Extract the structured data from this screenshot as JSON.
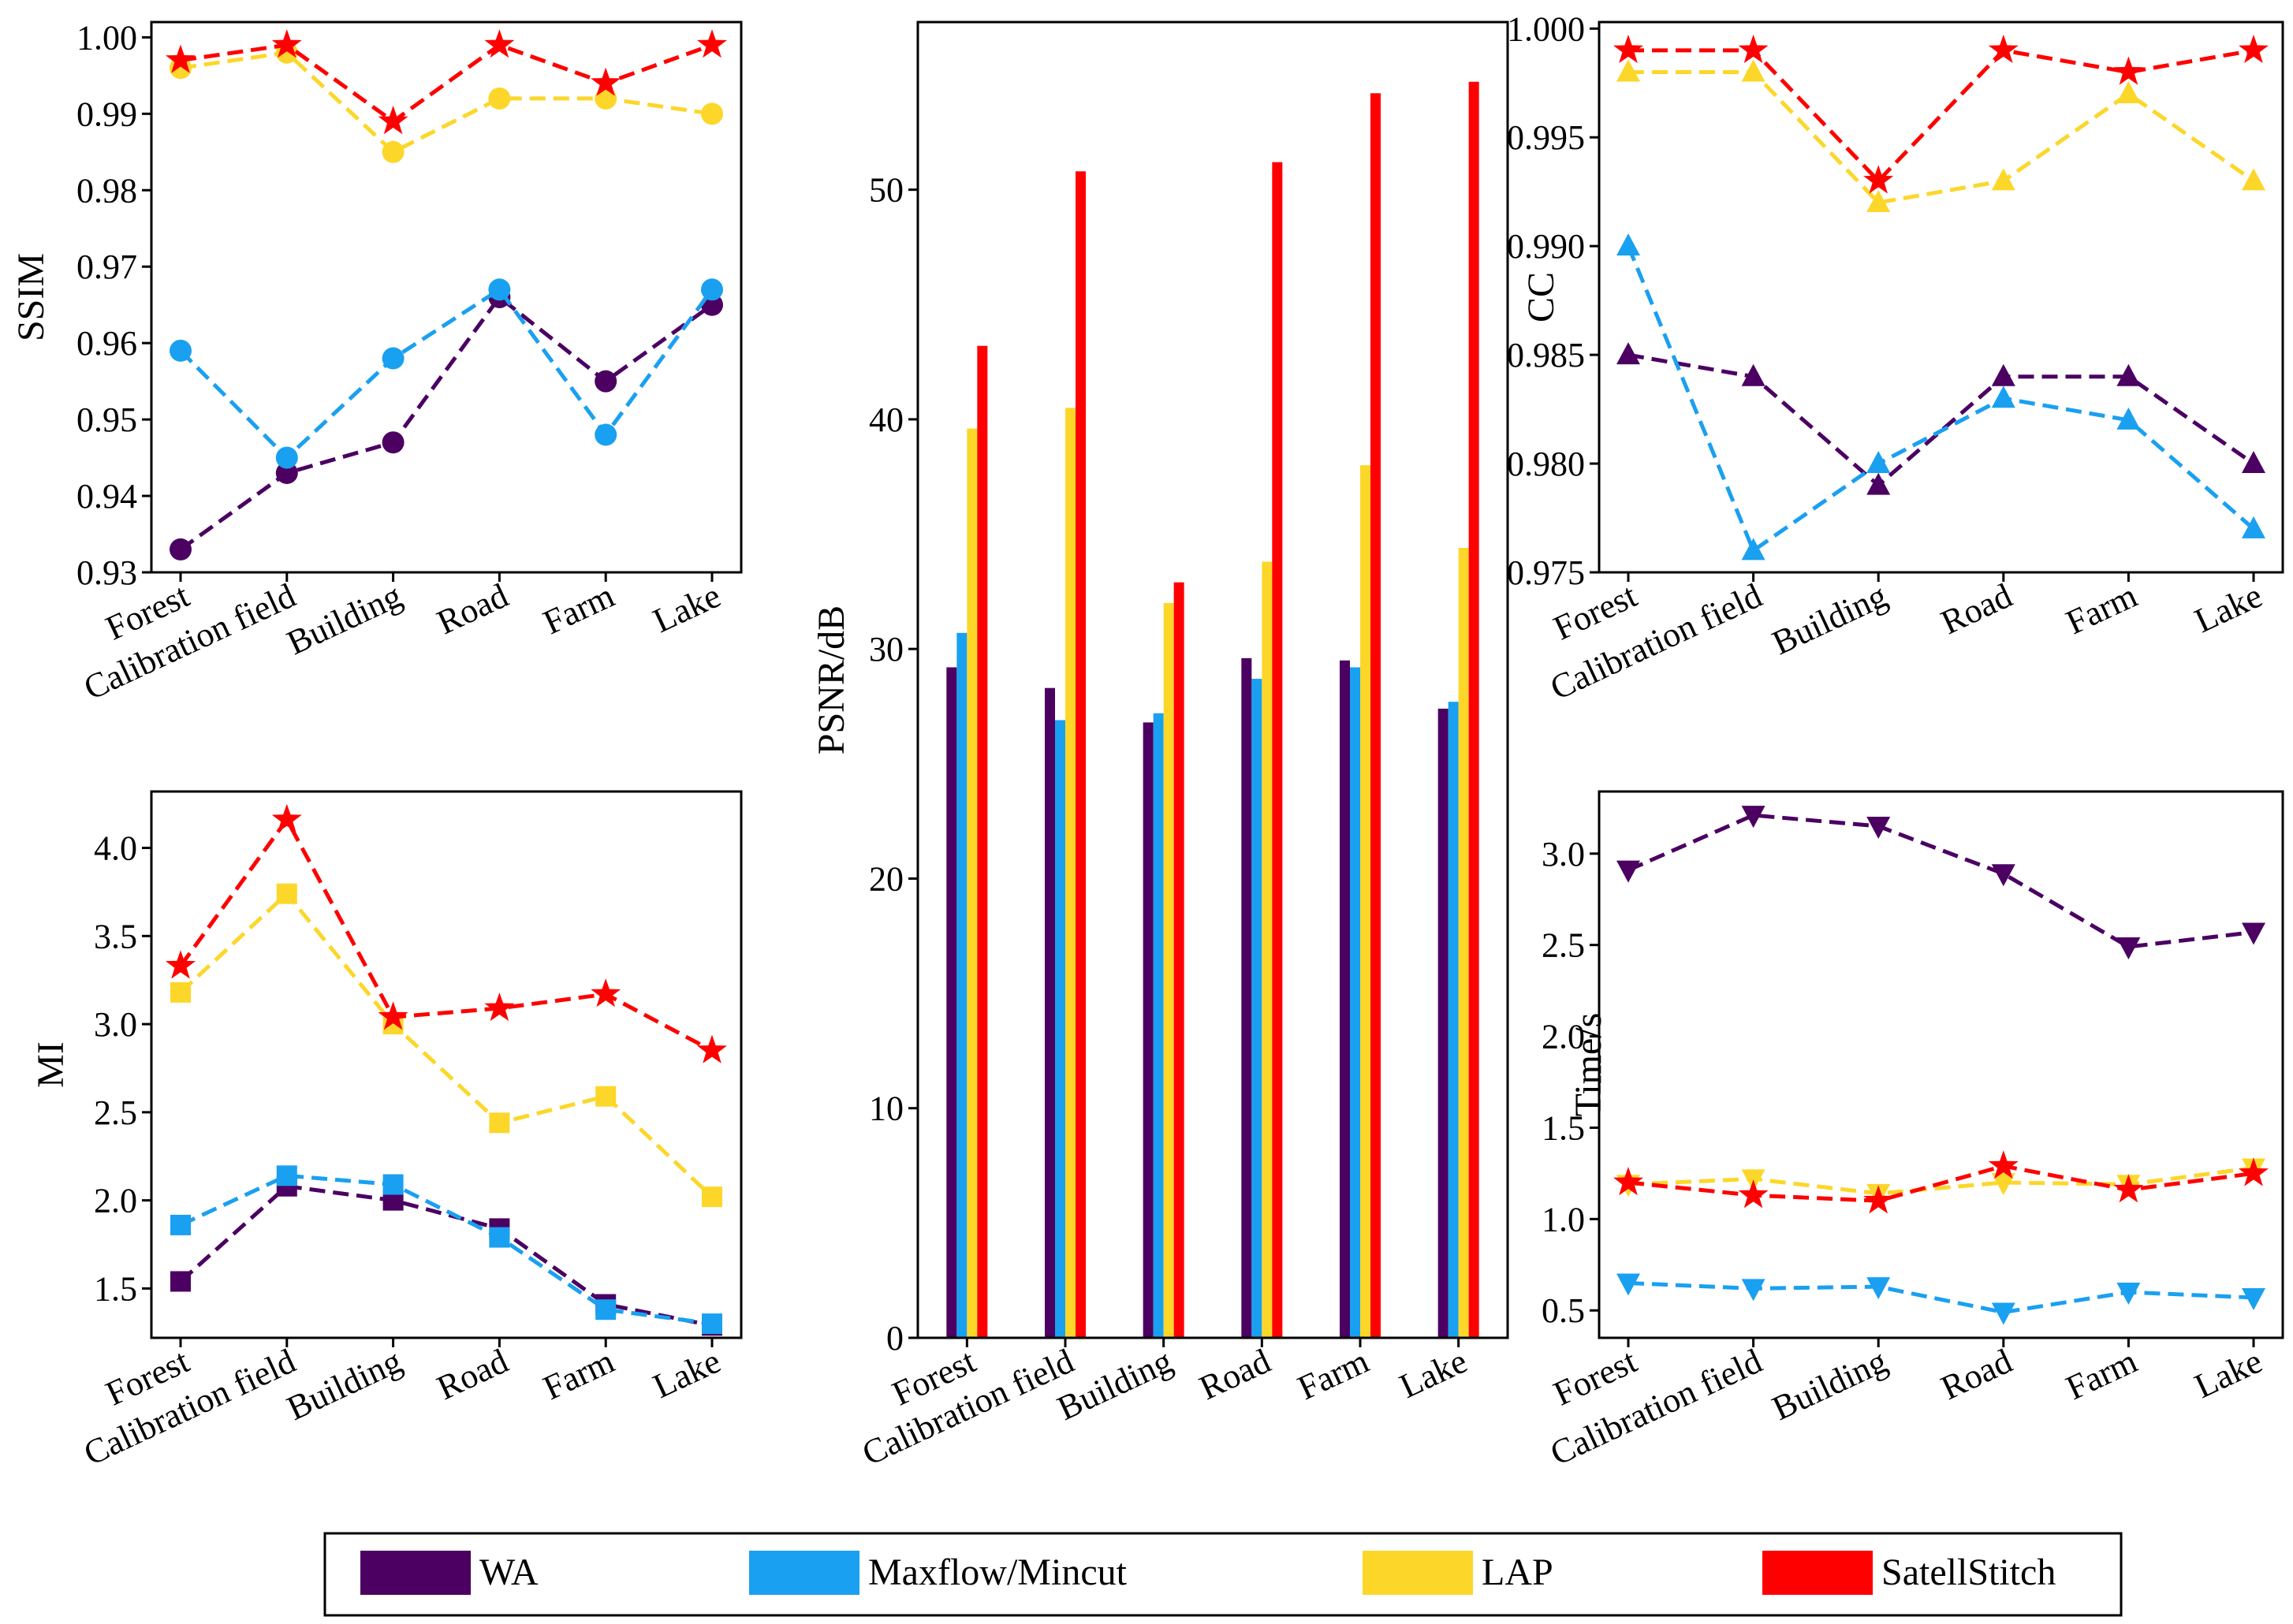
{
  "legend": [
    {
      "name": "WA",
      "color": "#4B0062"
    },
    {
      "name": "Maxflow/Mincut",
      "color": "#1AA0F0"
    },
    {
      "name": "LAP",
      "color": "#FCD72A"
    },
    {
      "name": "SatellStitch",
      "color": "#FF0000"
    }
  ],
  "chart_data": [
    {
      "id": "ssim",
      "type": "line",
      "ylabel": "SSIM",
      "categories": [
        "Forest",
        "Calibration field",
        "Building",
        "Road",
        "Farm",
        "Lake"
      ],
      "ylim": [
        0.93,
        1.002
      ],
      "yticks": [
        0.93,
        0.94,
        0.95,
        0.96,
        0.97,
        0.98,
        0.99,
        1.0
      ],
      "ytick_labels": [
        "0.93",
        "0.94",
        "0.95",
        "0.96",
        "0.97",
        "0.98",
        "0.99",
        "1.00"
      ],
      "marker": "circle",
      "series": [
        {
          "name": "WA",
          "values": [
            0.933,
            0.943,
            0.947,
            0.966,
            0.955,
            0.965
          ]
        },
        {
          "name": "Maxflow/Mincut",
          "values": [
            0.959,
            0.945,
            0.958,
            0.967,
            0.948,
            0.967
          ]
        },
        {
          "name": "LAP",
          "values": [
            0.996,
            0.998,
            0.985,
            0.992,
            0.992,
            0.99
          ]
        },
        {
          "name": "SatellStitch",
          "values": [
            0.997,
            0.999,
            0.989,
            0.999,
            0.994,
            0.999
          ]
        }
      ]
    },
    {
      "id": "mi",
      "type": "line",
      "ylabel": "MI",
      "categories": [
        "Forest",
        "Calibration field",
        "Building",
        "Road",
        "Farm",
        "Lake"
      ],
      "ylim": [
        1.22,
        4.32
      ],
      "yticks": [
        1.5,
        2.0,
        2.5,
        3.0,
        3.5,
        4.0
      ],
      "ytick_labels": [
        "1.5",
        "2.0",
        "2.5",
        "3.0",
        "3.5",
        "4.0"
      ],
      "marker": "square",
      "series": [
        {
          "name": "WA",
          "values": [
            1.54,
            2.08,
            2.0,
            1.84,
            1.41,
            1.29
          ]
        },
        {
          "name": "Maxflow/Mincut",
          "values": [
            1.86,
            2.14,
            2.09,
            1.79,
            1.38,
            1.3
          ]
        },
        {
          "name": "LAP",
          "values": [
            3.18,
            3.74,
            3.0,
            2.44,
            2.59,
            2.02
          ]
        },
        {
          "name": "SatellStitch",
          "values": [
            3.33,
            4.16,
            3.04,
            3.09,
            3.17,
            2.85
          ]
        }
      ]
    },
    {
      "id": "psnr",
      "type": "bar",
      "ylabel": "PSNR/dB",
      "categories": [
        "Forest",
        "Calibration field",
        "Building",
        "Road",
        "Farm",
        "Lake"
      ],
      "ylim": [
        0,
        57.3
      ],
      "yticks": [
        0,
        10,
        20,
        30,
        40,
        50
      ],
      "ytick_labels": [
        "0",
        "10",
        "20",
        "30",
        "40",
        "50"
      ],
      "series": [
        {
          "name": "WA",
          "values": [
            29.2,
            28.3,
            26.8,
            29.6,
            29.5,
            27.4
          ]
        },
        {
          "name": "Maxflow/Mincut",
          "values": [
            30.7,
            26.9,
            27.2,
            28.7,
            29.2,
            27.7
          ]
        },
        {
          "name": "LAP",
          "values": [
            39.6,
            40.5,
            32.0,
            33.8,
            38.0,
            34.4
          ]
        },
        {
          "name": "SatellStitch",
          "values": [
            43.2,
            50.8,
            32.9,
            51.2,
            54.2,
            54.7
          ]
        }
      ]
    },
    {
      "id": "cc",
      "type": "line",
      "ylabel": "CC",
      "categories": [
        "Forest",
        "Calibration field",
        "Building",
        "Road",
        "Farm",
        "Lake"
      ],
      "ylim": [
        0.975,
        1.0003
      ],
      "yticks": [
        0.975,
        0.98,
        0.985,
        0.99,
        0.995,
        1.0
      ],
      "ytick_labels": [
        "0.975",
        "0.980",
        "0.985",
        "0.990",
        "0.995",
        "1.000"
      ],
      "marker": "triangle-up",
      "series": [
        {
          "name": "WA",
          "values": [
            0.985,
            0.984,
            0.979,
            0.984,
            0.984,
            0.98
          ]
        },
        {
          "name": "Maxflow/Mincut",
          "values": [
            0.99,
            0.976,
            0.98,
            0.983,
            0.982,
            0.977
          ]
        },
        {
          "name": "LAP",
          "values": [
            0.998,
            0.998,
            0.992,
            0.993,
            0.997,
            0.993
          ]
        },
        {
          "name": "SatellStitch",
          "values": [
            0.999,
            0.999,
            0.993,
            0.999,
            0.998,
            0.999
          ]
        }
      ]
    },
    {
      "id": "time",
      "type": "line",
      "ylabel": "Time/s",
      "categories": [
        "Forest",
        "Calibration field",
        "Building",
        "Road",
        "Farm",
        "Lake"
      ],
      "ylim": [
        0.35,
        3.34
      ],
      "yticks": [
        0.5,
        1.0,
        1.5,
        2.0,
        2.5,
        3.0
      ],
      "ytick_labels": [
        "0.5",
        "1.0",
        "1.5",
        "2.0",
        "2.5",
        "3.0"
      ],
      "marker": "triangle-down",
      "series": [
        {
          "name": "WA",
          "values": [
            2.91,
            3.21,
            3.15,
            2.89,
            2.49,
            2.57
          ]
        },
        {
          "name": "Maxflow/Mincut",
          "values": [
            0.65,
            0.62,
            0.63,
            0.49,
            0.6,
            0.57
          ]
        },
        {
          "name": "LAP",
          "values": [
            1.19,
            1.22,
            1.14,
            1.2,
            1.19,
            1.28
          ]
        },
        {
          "name": "SatellStitch",
          "values": [
            1.2,
            1.13,
            1.1,
            1.29,
            1.16,
            1.25
          ]
        }
      ]
    }
  ]
}
